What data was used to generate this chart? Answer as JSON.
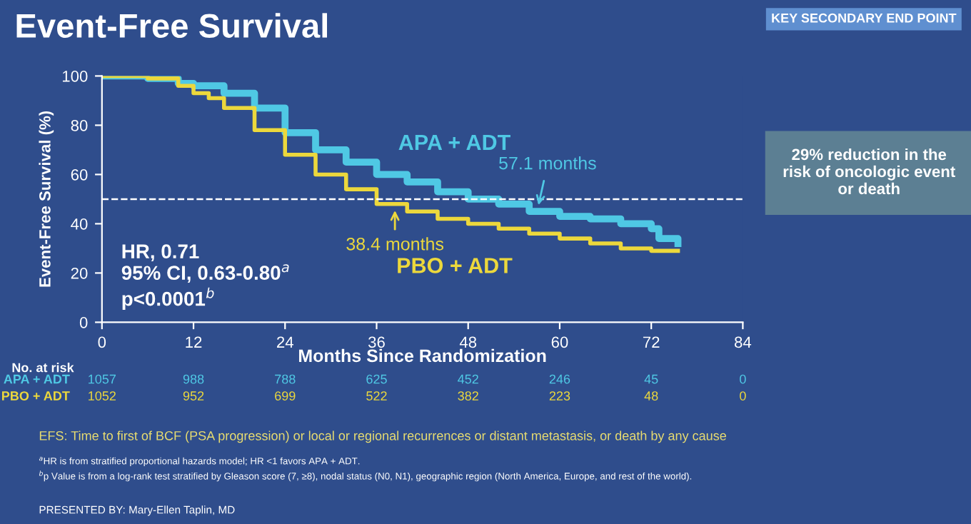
{
  "chart_data": {
    "type": "step",
    "title": "Event-Free Survival",
    "subtitle": "KEY SECONDARY END POINT",
    "xlabel": "Months Since Randomization",
    "ylabel": "Event-Free Survival (%)",
    "x": [
      0,
      6,
      10,
      12,
      14,
      16,
      20,
      24,
      28,
      32,
      36,
      40,
      44,
      48,
      52,
      56,
      60,
      64,
      68,
      72,
      73,
      75.5
    ],
    "series": [
      {
        "name": "APA + ADT",
        "color": "#4fc8e4",
        "values": [
          100,
          99,
          97,
          96,
          96,
          93,
          87,
          77,
          70,
          65,
          60,
          57,
          53,
          50,
          48,
          45,
          43,
          42,
          40,
          38,
          34,
          32
        ]
      },
      {
        "name": "PBO + ADT",
        "color": "#ecd83c",
        "values": [
          100,
          99,
          96,
          93,
          91,
          87,
          78,
          68,
          60,
          54,
          48,
          45,
          42,
          40,
          38,
          36,
          34,
          32,
          30,
          29,
          29,
          29
        ]
      }
    ],
    "xlim": [
      0,
      84
    ],
    "xticks": [
      0,
      12,
      24,
      36,
      48,
      60,
      72,
      84
    ],
    "ylim": [
      0,
      100
    ],
    "yticks": [
      0,
      20,
      40,
      60,
      80,
      100
    ],
    "grid": false,
    "ref_lines": [
      {
        "axis": "y",
        "value": 50,
        "color": "#ffffff",
        "line_style": "dashed"
      }
    ],
    "annotations": [
      {
        "text": "57.1 months",
        "x": 57.1,
        "y": 50
      },
      {
        "text": "38.4 months",
        "x": 38.4,
        "y": 50
      },
      "HR, 0.71\n95% CI, 0.63-0.80$^{a}$\np<0.0001$^{b}$",
      "29% reduction in the\nrisk of oncologic event\nor death",
      "No. at risk",
      "1057",
      "988",
      "788",
      "625",
      "452",
      "246",
      "45",
      "0",
      "1052",
      "952",
      "699",
      "522",
      "382",
      "223",
      "48",
      "0",
      "EFS: Time to first of BCF (PSA progression) or local or regional recurrences or distant metastasis, or death by any cause",
      "$^{a}$HR is from stratified proportional hazards model; HR <1 favors APA + ADT.\n$^{b}$p Value is from a log-rank test stratified by Gleason score (7, ≥8), nodal status (N0, N1), geographic region (North America, Europe, and rest of the world).",
      "PRESENTED BY: Mary-Ellen Taplin, MD"
    ]
  }
}
